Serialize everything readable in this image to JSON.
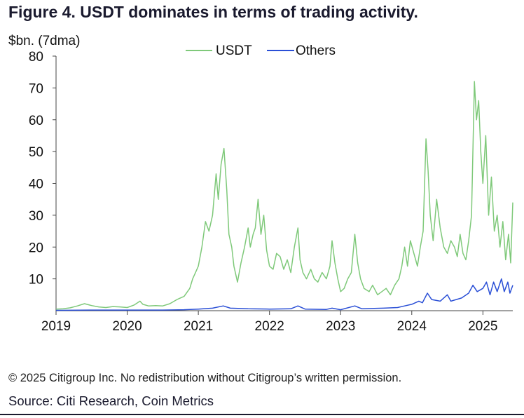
{
  "figure_title": "Figure 4. USDT dominates in terms of trading activity.",
  "copyright": "© 2025 Citigroup Inc. No redistribution without Citigroup’s written permission.",
  "source": "Source: Citi Research, Coin Metrics",
  "chart_data": {
    "type": "line",
    "title": "Figure 4. USDT dominates in terms of trading activity.",
    "ylabel": "$bn. (7dma)",
    "xlabel": "",
    "ylim": [
      0,
      80
    ],
    "xlim": [
      2019.0,
      2025.42
    ],
    "y_ticks": [
      "10",
      "20",
      "30",
      "40",
      "50",
      "60",
      "70",
      "80"
    ],
    "x_ticks": [
      "2019",
      "2020",
      "2021",
      "2022",
      "2023",
      "2024",
      "2025"
    ],
    "legend_position": "top-center",
    "grid": false,
    "series": [
      {
        "name": "USDT",
        "color": "#7fc97a",
        "points": [
          [
            2019.0,
            0.5
          ],
          [
            2019.1,
            0.6
          ],
          [
            2019.2,
            0.9
          ],
          [
            2019.3,
            1.5
          ],
          [
            2019.4,
            2.2
          ],
          [
            2019.5,
            1.6
          ],
          [
            2019.6,
            1.2
          ],
          [
            2019.7,
            1.0
          ],
          [
            2019.8,
            1.3
          ],
          [
            2019.9,
            1.2
          ],
          [
            2020.0,
            1.0
          ],
          [
            2020.1,
            1.8
          ],
          [
            2020.18,
            3.0
          ],
          [
            2020.22,
            2.0
          ],
          [
            2020.3,
            1.5
          ],
          [
            2020.4,
            1.6
          ],
          [
            2020.5,
            1.5
          ],
          [
            2020.6,
            2.2
          ],
          [
            2020.7,
            3.5
          ],
          [
            2020.8,
            4.5
          ],
          [
            2020.88,
            7.0
          ],
          [
            2020.92,
            10.0
          ],
          [
            2020.96,
            12.0
          ],
          [
            2021.0,
            14.0
          ],
          [
            2021.05,
            20.0
          ],
          [
            2021.1,
            28.0
          ],
          [
            2021.15,
            25.0
          ],
          [
            2021.2,
            30.0
          ],
          [
            2021.25,
            43.0
          ],
          [
            2021.28,
            35.0
          ],
          [
            2021.32,
            46.0
          ],
          [
            2021.36,
            51.0
          ],
          [
            2021.4,
            38.0
          ],
          [
            2021.43,
            24.0
          ],
          [
            2021.47,
            20.0
          ],
          [
            2021.5,
            14.0
          ],
          [
            2021.55,
            9.0
          ],
          [
            2021.6,
            15.0
          ],
          [
            2021.65,
            20.0
          ],
          [
            2021.7,
            26.0
          ],
          [
            2021.73,
            20.0
          ],
          [
            2021.77,
            24.0
          ],
          [
            2021.8,
            26.0
          ],
          [
            2021.84,
            35.0
          ],
          [
            2021.88,
            24.0
          ],
          [
            2021.92,
            30.0
          ],
          [
            2021.96,
            19.0
          ],
          [
            2022.0,
            14.0
          ],
          [
            2022.05,
            13.0
          ],
          [
            2022.1,
            18.0
          ],
          [
            2022.15,
            17.0
          ],
          [
            2022.2,
            13.0
          ],
          [
            2022.25,
            16.0
          ],
          [
            2022.3,
            12.0
          ],
          [
            2022.35,
            20.0
          ],
          [
            2022.4,
            26.0
          ],
          [
            2022.43,
            16.0
          ],
          [
            2022.47,
            12.0
          ],
          [
            2022.52,
            10.0
          ],
          [
            2022.58,
            13.0
          ],
          [
            2022.63,
            10.0
          ],
          [
            2022.68,
            9.0
          ],
          [
            2022.74,
            12.0
          ],
          [
            2022.8,
            10.0
          ],
          [
            2022.85,
            14.0
          ],
          [
            2022.88,
            22.0
          ],
          [
            2022.92,
            15.0
          ],
          [
            2022.96,
            10.0
          ],
          [
            2023.0,
            6.0
          ],
          [
            2023.05,
            7.0
          ],
          [
            2023.1,
            10.0
          ],
          [
            2023.15,
            12.0
          ],
          [
            2023.2,
            24.0
          ],
          [
            2023.24,
            15.0
          ],
          [
            2023.28,
            10.0
          ],
          [
            2023.33,
            7.0
          ],
          [
            2023.4,
            6.0
          ],
          [
            2023.45,
            8.0
          ],
          [
            2023.52,
            5.0
          ],
          [
            2023.58,
            6.0
          ],
          [
            2023.64,
            7.0
          ],
          [
            2023.7,
            5.0
          ],
          [
            2023.76,
            8.0
          ],
          [
            2023.82,
            10.0
          ],
          [
            2023.86,
            14.0
          ],
          [
            2023.9,
            20.0
          ],
          [
            2023.94,
            14.0
          ],
          [
            2023.98,
            22.0
          ],
          [
            2024.03,
            18.0
          ],
          [
            2024.08,
            14.0
          ],
          [
            2024.12,
            20.0
          ],
          [
            2024.16,
            25.0
          ],
          [
            2024.2,
            54.0
          ],
          [
            2024.23,
            44.0
          ],
          [
            2024.26,
            30.0
          ],
          [
            2024.3,
            22.0
          ],
          [
            2024.35,
            35.0
          ],
          [
            2024.4,
            26.0
          ],
          [
            2024.45,
            20.0
          ],
          [
            2024.5,
            18.0
          ],
          [
            2024.55,
            22.0
          ],
          [
            2024.6,
            20.0
          ],
          [
            2024.64,
            17.0
          ],
          [
            2024.68,
            24.0
          ],
          [
            2024.72,
            18.0
          ],
          [
            2024.76,
            16.0
          ],
          [
            2024.8,
            22.0
          ],
          [
            2024.84,
            30.0
          ],
          [
            2024.88,
            72.0
          ],
          [
            2024.91,
            60.0
          ],
          [
            2024.94,
            66.0
          ],
          [
            2024.97,
            50.0
          ],
          [
            2025.0,
            40.0
          ],
          [
            2025.04,
            55.0
          ],
          [
            2025.08,
            30.0
          ],
          [
            2025.12,
            42.0
          ],
          [
            2025.16,
            25.0
          ],
          [
            2025.2,
            30.0
          ],
          [
            2025.24,
            20.0
          ],
          [
            2025.28,
            28.0
          ],
          [
            2025.32,
            16.0
          ],
          [
            2025.36,
            24.0
          ],
          [
            2025.39,
            15.0
          ],
          [
            2025.42,
            34.0
          ]
        ]
      },
      {
        "name": "Others",
        "color": "#2a4fd6",
        "points": [
          [
            2019.0,
            0.1
          ],
          [
            2019.5,
            0.2
          ],
          [
            2020.0,
            0.2
          ],
          [
            2020.5,
            0.2
          ],
          [
            2020.8,
            0.3
          ],
          [
            2021.0,
            0.5
          ],
          [
            2021.2,
            0.8
          ],
          [
            2021.35,
            1.5
          ],
          [
            2021.45,
            0.8
          ],
          [
            2021.7,
            0.6
          ],
          [
            2022.0,
            0.5
          ],
          [
            2022.3,
            0.6
          ],
          [
            2022.4,
            1.5
          ],
          [
            2022.5,
            0.5
          ],
          [
            2022.8,
            0.4
          ],
          [
            2022.88,
            0.8
          ],
          [
            2023.0,
            0.3
          ],
          [
            2023.2,
            1.5
          ],
          [
            2023.3,
            0.6
          ],
          [
            2023.6,
            0.8
          ],
          [
            2023.8,
            1.0
          ],
          [
            2023.9,
            1.5
          ],
          [
            2024.0,
            2.0
          ],
          [
            2024.1,
            3.0
          ],
          [
            2024.15,
            2.5
          ],
          [
            2024.22,
            5.5
          ],
          [
            2024.28,
            3.5
          ],
          [
            2024.4,
            3.0
          ],
          [
            2024.5,
            5.0
          ],
          [
            2024.55,
            3.0
          ],
          [
            2024.7,
            4.0
          ],
          [
            2024.8,
            5.5
          ],
          [
            2024.86,
            8.0
          ],
          [
            2024.92,
            6.0
          ],
          [
            2025.0,
            7.0
          ],
          [
            2025.05,
            9.0
          ],
          [
            2025.1,
            5.0
          ],
          [
            2025.15,
            9.0
          ],
          [
            2025.2,
            6.0
          ],
          [
            2025.26,
            10.0
          ],
          [
            2025.3,
            6.0
          ],
          [
            2025.35,
            9.0
          ],
          [
            2025.38,
            5.5
          ],
          [
            2025.42,
            8.0
          ]
        ]
      }
    ]
  }
}
